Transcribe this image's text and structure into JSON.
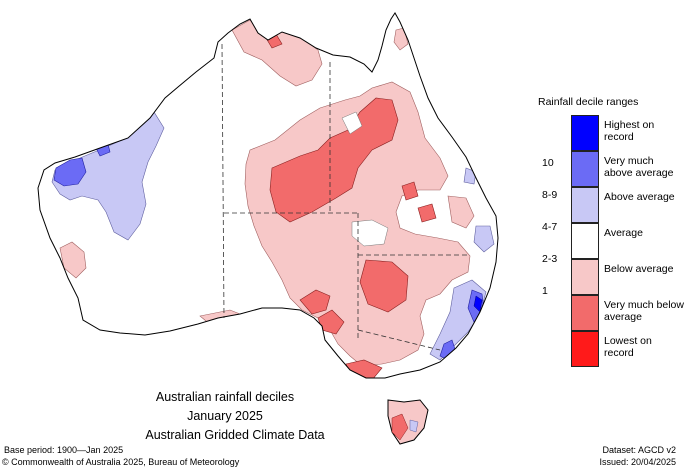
{
  "title_lines": [
    "Australian rainfall deciles",
    "January 2025",
    "Australian Gridded Climate Data"
  ],
  "legend": {
    "title": "Rainfall decile ranges",
    "categories": [
      {
        "label": "Highest on record",
        "color": "#0000ff"
      },
      {
        "label": "Very much above average",
        "color": "#6b6bf5"
      },
      {
        "label": "Above average",
        "color": "#c8c8f5"
      },
      {
        "label": "Average",
        "color": "#ffffff"
      },
      {
        "label": "Below average",
        "color": "#f7c8c8"
      },
      {
        "label": "Very much below average",
        "color": "#f26b6b"
      },
      {
        "label": "Lowest on record",
        "color": "#ff1a1a"
      }
    ],
    "ranges": [
      "10",
      "8-9",
      "4-7",
      "2-3",
      "1"
    ]
  },
  "footer": {
    "base_period": "Base period: 1900—Jan 2025",
    "dataset": "Dataset: AGCD v2",
    "copyright": "© Commonwealth of Australia 2025, Bureau of Meteorology",
    "issued": "Issued: 20/04/2025"
  }
}
